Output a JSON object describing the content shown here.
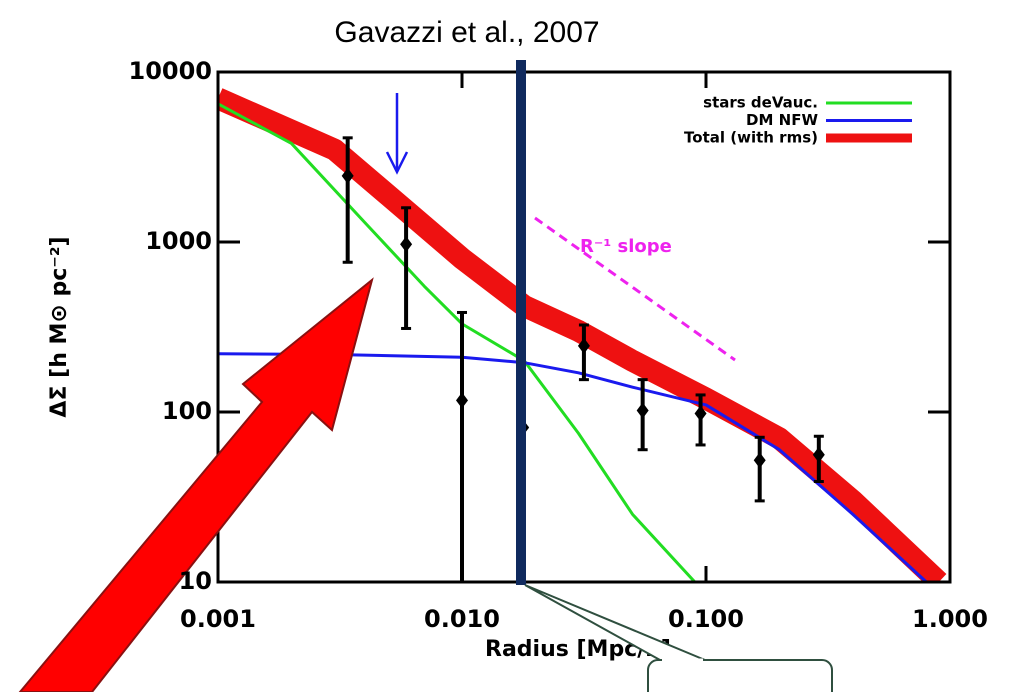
{
  "chart_data": {
    "type": "line",
    "title": "Gavazzi et al., 2007",
    "x_label": "Radius [Mpc/h]",
    "y_label": "ΔΣ   [h M⊙ pc⁻²]",
    "xlim": [
      0.001,
      1
    ],
    "ylim": [
      10,
      10000
    ],
    "log_x": true,
    "log_y": true,
    "xticks": [
      {
        "value": 0.001,
        "label": "0.001"
      },
      {
        "value": 0.01,
        "label": "0.010"
      },
      {
        "value": 0.1,
        "label": "0.100"
      },
      {
        "value": 1,
        "label": "1.000"
      }
    ],
    "yticks": [
      10,
      100,
      1000,
      10000
    ],
    "legend": "upper right",
    "series": [
      {
        "name": "stars deVauc.",
        "color": "#22dd22",
        "width": 3,
        "x": [
          0.001,
          0.002,
          0.004,
          0.007,
          0.01,
          0.018,
          0.03,
          0.05,
          0.09
        ],
        "values": [
          6500,
          3800,
          1300,
          550,
          330,
          200,
          75,
          25,
          10
        ]
      },
      {
        "name": "DM NFW",
        "color": "#1a1aee",
        "width": 3,
        "x": [
          0.001,
          0.003,
          0.01,
          0.018,
          0.03,
          0.05,
          0.1,
          0.2,
          0.4,
          0.8
        ],
        "values": [
          220,
          218,
          210,
          195,
          170,
          140,
          110,
          60,
          25,
          10
        ]
      },
      {
        "name": "Total (with rms)",
        "color": "#ee1111",
        "width": 22,
        "x": [
          0.001,
          0.003,
          0.006,
          0.01,
          0.018,
          0.03,
          0.05,
          0.1,
          0.2,
          0.4,
          0.9
        ],
        "values": [
          7000,
          3500,
          1500,
          800,
          420,
          300,
          200,
          120,
          70,
          30,
          10
        ]
      }
    ],
    "points": {
      "color": "#000000",
      "x": [
        0.0034,
        0.0059,
        0.01,
        0.0178,
        0.0316,
        0.055,
        0.095,
        0.166,
        0.29
      ],
      "values": [
        2450,
        970,
        117,
        81,
        245,
        102,
        98,
        52,
        56
      ],
      "lower": [
        760,
        310,
        10,
        81,
        155,
        60,
        64,
        30,
        39
      ],
      "upper": [
        4100,
        1590,
        385,
        81,
        325,
        155,
        126,
        71,
        72
      ]
    },
    "annotation": "R⁻¹ slope"
  }
}
